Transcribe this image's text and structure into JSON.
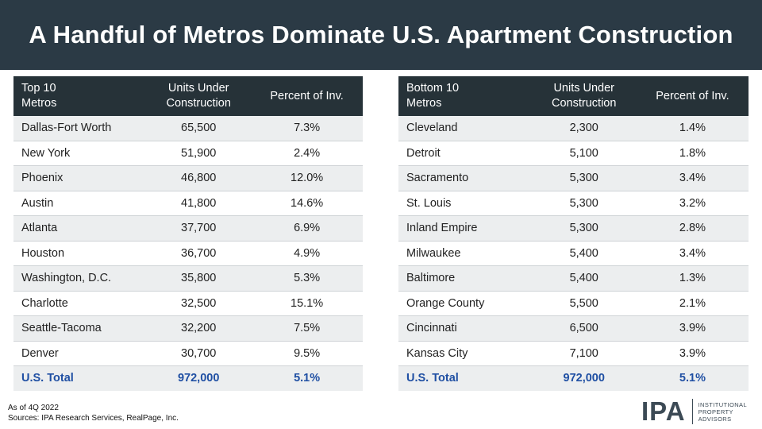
{
  "title": "A Handful of Metros Dominate U.S. Apartment Construction",
  "top_table": {
    "headers": [
      "Top 10\nMetros",
      "Units Under\nConstruction",
      "Percent of Inv."
    ],
    "rows": [
      {
        "metro": "Dallas-Fort Worth",
        "units": "65,500",
        "pct": "7.3%"
      },
      {
        "metro": "New York",
        "units": "51,900",
        "pct": "2.4%"
      },
      {
        "metro": "Phoenix",
        "units": "46,800",
        "pct": "12.0%"
      },
      {
        "metro": "Austin",
        "units": "41,800",
        "pct": "14.6%"
      },
      {
        "metro": "Atlanta",
        "units": "37,700",
        "pct": "6.9%"
      },
      {
        "metro": "Houston",
        "units": "36,700",
        "pct": "4.9%"
      },
      {
        "metro": "Washington, D.C.",
        "units": "35,800",
        "pct": "5.3%"
      },
      {
        "metro": "Charlotte",
        "units": "32,500",
        "pct": "15.1%"
      },
      {
        "metro": "Seattle-Tacoma",
        "units": "32,200",
        "pct": "7.5%"
      },
      {
        "metro": "Denver",
        "units": "30,700",
        "pct": "9.5%"
      }
    ],
    "total": {
      "metro": "U.S. Total",
      "units": "972,000",
      "pct": "5.1%"
    }
  },
  "bottom_table": {
    "headers": [
      "Bottom 10\nMetros",
      "Units Under\nConstruction",
      "Percent of Inv."
    ],
    "rows": [
      {
        "metro": "Cleveland",
        "units": "2,300",
        "pct": "1.4%"
      },
      {
        "metro": "Detroit",
        "units": "5,100",
        "pct": "1.8%"
      },
      {
        "metro": "Sacramento",
        "units": "5,300",
        "pct": "3.4%"
      },
      {
        "metro": "St. Louis",
        "units": "5,300",
        "pct": "3.2%"
      },
      {
        "metro": "Inland Empire",
        "units": "5,300",
        "pct": "2.8%"
      },
      {
        "metro": "Milwaukee",
        "units": "5,400",
        "pct": "3.4%"
      },
      {
        "metro": "Baltimore",
        "units": "5,400",
        "pct": "1.3%"
      },
      {
        "metro": "Orange County",
        "units": "5,500",
        "pct": "2.1%"
      },
      {
        "metro": "Cincinnati",
        "units": "6,500",
        "pct": "3.9%"
      },
      {
        "metro": "Kansas City",
        "units": "7,100",
        "pct": "3.9%"
      }
    ],
    "total": {
      "metro": "U.S. Total",
      "units": "972,000",
      "pct": "5.1%"
    }
  },
  "footnote": {
    "line1": "As of 4Q 2022",
    "line2": "Sources: IPA Research Services, RealPage, Inc."
  },
  "logo": {
    "mark": "IPA",
    "sub_lines": [
      "INSTITUTIONAL",
      "PROPERTY",
      "ADVISORS"
    ]
  },
  "colors": {
    "title_bar": "#2b3a45",
    "table_header": "#263238",
    "total_text": "#1f4fa3",
    "row_stripe": "#eceeef"
  }
}
